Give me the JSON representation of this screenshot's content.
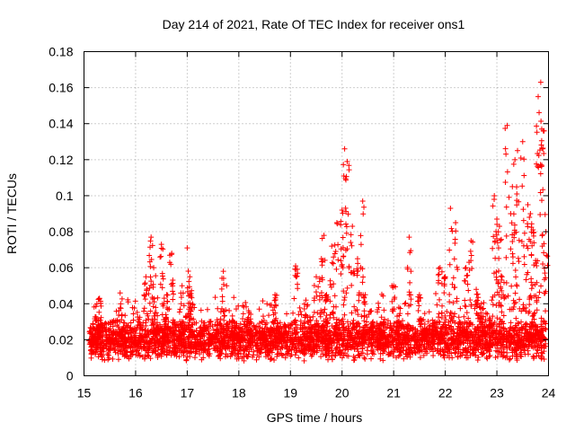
{
  "chart_data": {
    "type": "scatter",
    "title": "Day 214 of 2021, Rate Of TEC Index for receiver ons1",
    "xlabel": "GPS time / hours",
    "ylabel": "ROTI / TECUs",
    "xlim": [
      15,
      24
    ],
    "ylim": [
      0,
      0.18
    ],
    "xticks": [
      "15",
      "16",
      "17",
      "18",
      "19",
      "20",
      "21",
      "22",
      "23",
      "24"
    ],
    "yticks": [
      "0",
      "0.02",
      "0.04",
      "0.06",
      "0.08",
      "0.1",
      "0.12",
      "0.14",
      "0.16",
      "0.18"
    ],
    "grid": true,
    "marker": "+",
    "color": "#ff0000",
    "series": [
      {
        "name": "ROTI",
        "x": [
          15.2,
          15.25,
          15.3,
          15.3,
          15.5,
          15.7,
          15.75,
          16.0,
          16.2,
          16.3,
          16.35,
          16.4,
          16.5,
          16.55,
          16.6,
          16.7,
          16.75,
          16.9,
          17.0,
          17.05,
          17.1,
          17.3,
          17.5,
          17.7,
          17.9,
          18.0,
          18.2,
          18.5,
          18.7,
          18.9,
          19.1,
          19.3,
          19.5,
          19.6,
          19.65,
          19.7,
          19.8,
          19.9,
          20.0,
          20.05,
          20.1,
          20.2,
          20.3,
          20.4,
          20.45,
          20.6,
          20.8,
          21.0,
          21.1,
          21.3,
          21.5,
          21.6,
          21.8,
          21.9,
          22.0,
          22.1,
          22.2,
          22.4,
          22.5,
          22.6,
          22.7,
          22.9,
          22.95,
          23.0,
          23.05,
          23.1,
          23.2,
          23.3,
          23.35,
          23.4,
          23.5,
          23.6,
          23.65,
          23.7,
          23.75,
          23.8,
          23.85,
          23.9,
          23.95
        ],
        "y": [
          0.018,
          0.04,
          0.043,
          0.025,
          0.02,
          0.046,
          0.022,
          0.017,
          0.055,
          0.077,
          0.06,
          0.035,
          0.073,
          0.04,
          0.045,
          0.068,
          0.03,
          0.05,
          0.071,
          0.055,
          0.04,
          0.025,
          0.022,
          0.058,
          0.03,
          0.024,
          0.035,
          0.026,
          0.045,
          0.028,
          0.061,
          0.042,
          0.055,
          0.065,
          0.078,
          0.045,
          0.072,
          0.085,
          0.092,
          0.126,
          0.119,
          0.083,
          0.065,
          0.097,
          0.045,
          0.03,
          0.024,
          0.05,
          0.038,
          0.077,
          0.045,
          0.025,
          0.03,
          0.06,
          0.055,
          0.093,
          0.085,
          0.06,
          0.075,
          0.048,
          0.04,
          0.042,
          0.1,
          0.087,
          0.083,
          0.055,
          0.139,
          0.105,
          0.12,
          0.125,
          0.13,
          0.095,
          0.09,
          0.081,
          0.064,
          0.155,
          0.163,
          0.136,
          0.08
        ]
      }
    ],
    "background_band": {
      "x_start": 15.1,
      "x_end": 23.95,
      "y_center": 0.02,
      "y_spread": 0.012,
      "points_per_hour": 420
    }
  }
}
